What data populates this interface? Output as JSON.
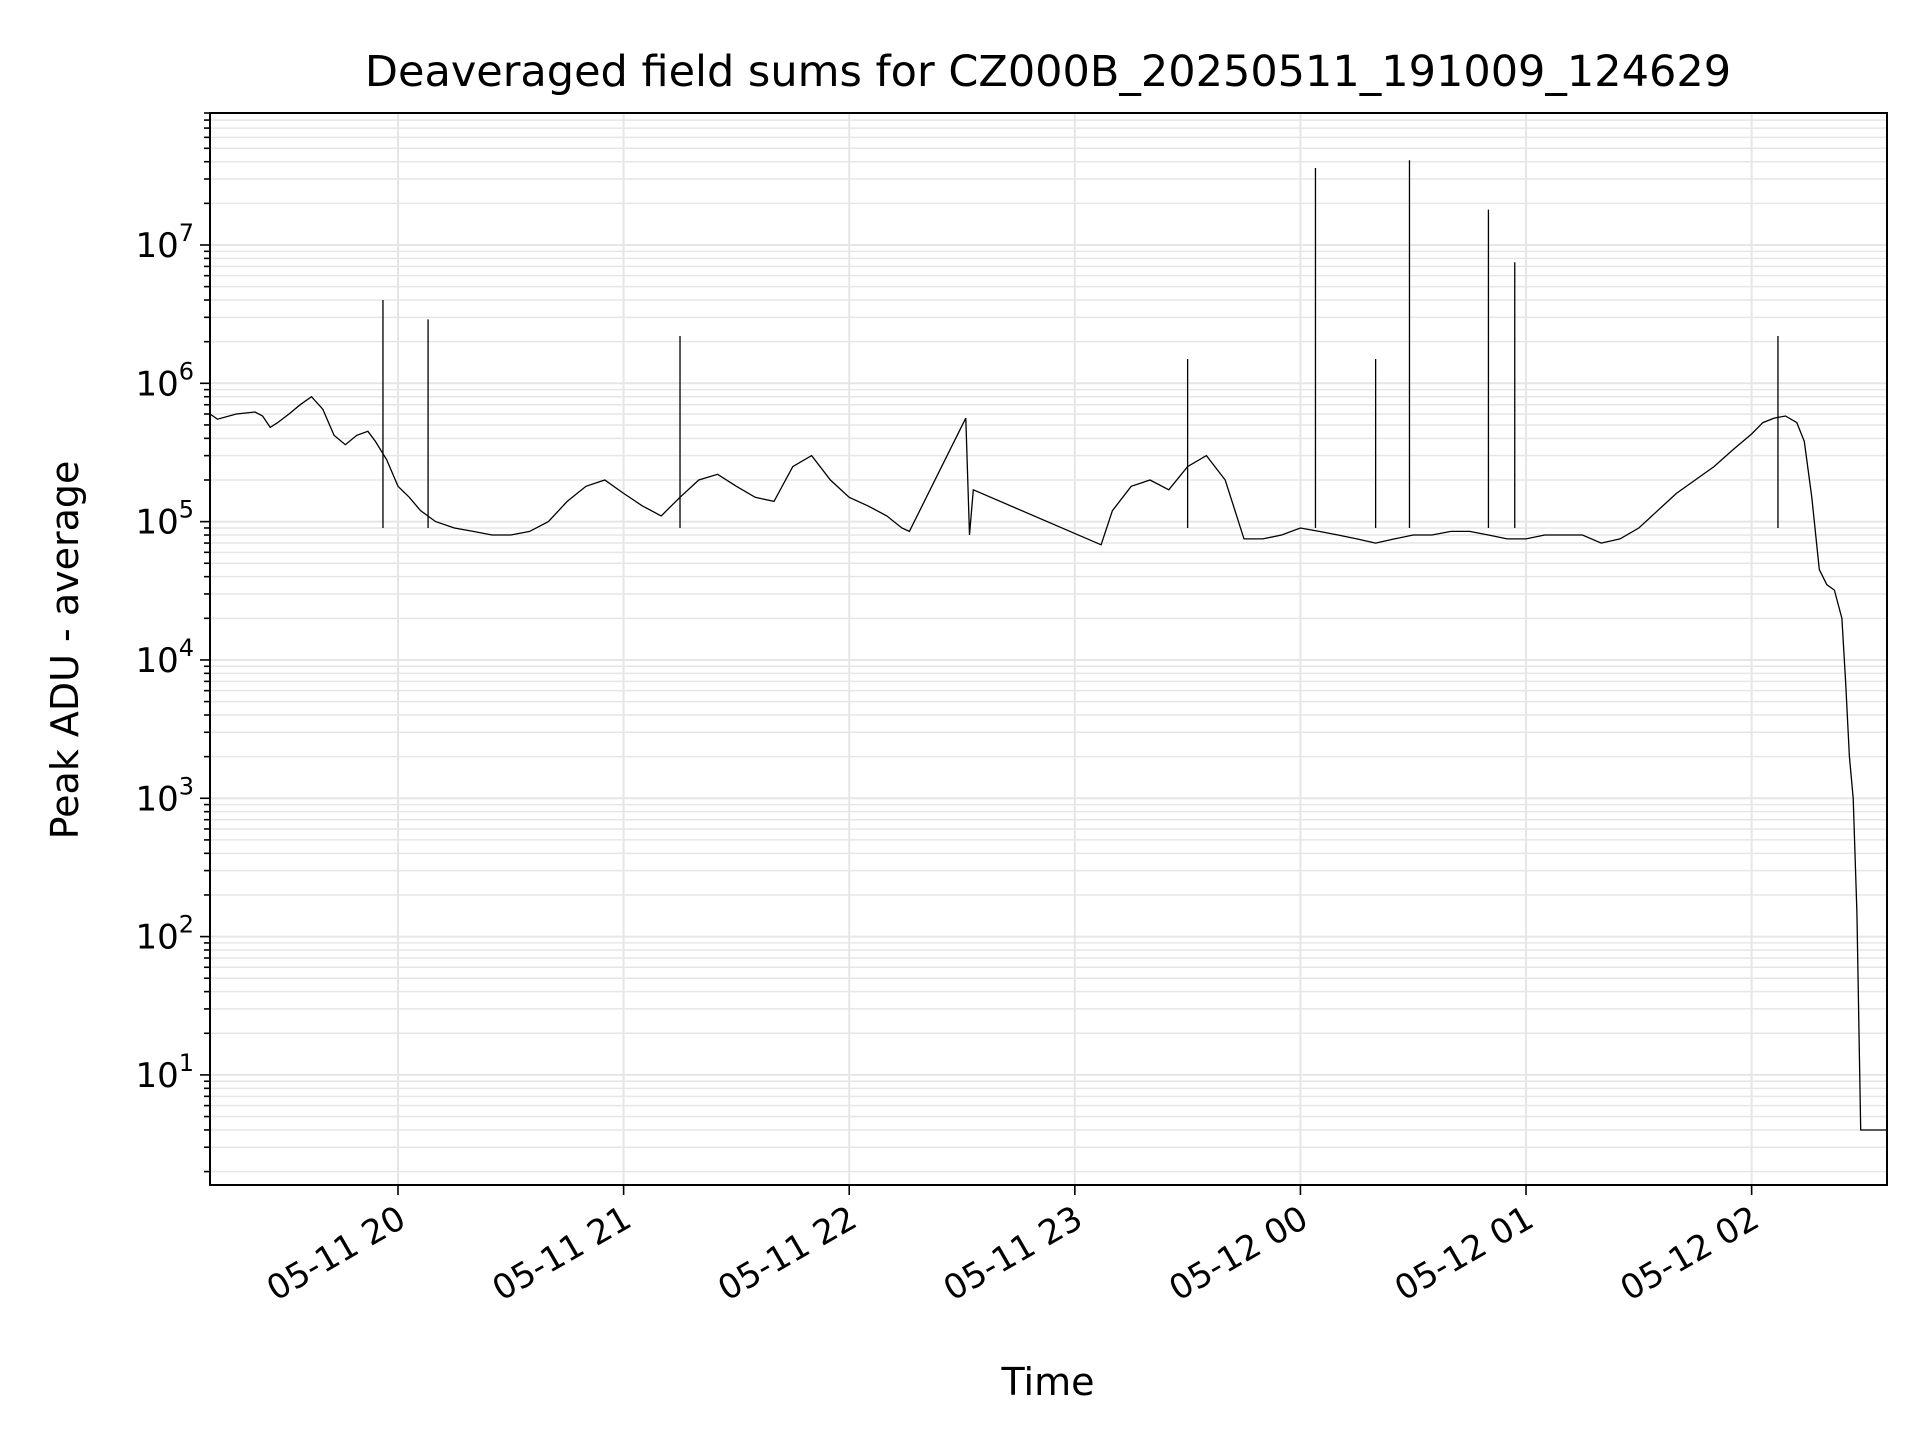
{
  "chart_data": {
    "type": "line",
    "title": "Deaveraged field sums for CZ000B_20250511_191009_124629",
    "xlabel": "Time",
    "ylabel": "Peak ADU - average",
    "yscale": "log",
    "xlim": [
      "2025-05-11 19:10",
      "2025-05-12 02:36"
    ],
    "ylim": [
      1.6,
      90000000
    ],
    "x_ticks": [
      {
        "value": "2025-05-11 20:00",
        "label": "05-11 20"
      },
      {
        "value": "2025-05-11 21:00",
        "label": "05-11 21"
      },
      {
        "value": "2025-05-11 22:00",
        "label": "05-11 22"
      },
      {
        "value": "2025-05-11 23:00",
        "label": "05-11 23"
      },
      {
        "value": "2025-05-12 00:00",
        "label": "05-12 00"
      },
      {
        "value": "2025-05-12 01:00",
        "label": "05-12 01"
      },
      {
        "value": "2025-05-12 02:00",
        "label": "05-12 02"
      }
    ],
    "y_ticks": [
      {
        "value": 10,
        "base": "10",
        "exp": "1"
      },
      {
        "value": 100,
        "base": "10",
        "exp": "2"
      },
      {
        "value": 1000,
        "base": "10",
        "exp": "3"
      },
      {
        "value": 10000,
        "base": "10",
        "exp": "4"
      },
      {
        "value": 100000,
        "base": "10",
        "exp": "5"
      },
      {
        "value": 1000000,
        "base": "10",
        "exp": "6"
      },
      {
        "value": 10000000,
        "base": "10",
        "exp": "7"
      }
    ],
    "grid": true,
    "series_color": "#000000",
    "series": [
      {
        "x": [
          "2025-05-11 19:10",
          "2025-05-11 19:12",
          "2025-05-11 19:17",
          "2025-05-11 19:22",
          "2025-05-11 19:24",
          "2025-05-11 19:26",
          "2025-05-11 19:28",
          "2025-05-11 19:31",
          "2025-05-11 19:34",
          "2025-05-11 19:37",
          "2025-05-11 19:40",
          "2025-05-11 19:43",
          "2025-05-11 19:46",
          "2025-05-11 19:49",
          "2025-05-11 19:52",
          "2025-05-11 19:54",
          "2025-05-11 19:57",
          "2025-05-11 20:00",
          "2025-05-11 20:03",
          "2025-05-11 20:06",
          "2025-05-11 20:10",
          "2025-05-11 20:15",
          "2025-05-11 20:20",
          "2025-05-11 20:25",
          "2025-05-11 20:30",
          "2025-05-11 20:35",
          "2025-05-11 20:40",
          "2025-05-11 20:45",
          "2025-05-11 20:50",
          "2025-05-11 20:55",
          "2025-05-11 21:00",
          "2025-05-11 21:05",
          "2025-05-11 21:10",
          "2025-05-11 21:15",
          "2025-05-11 21:20",
          "2025-05-11 21:25",
          "2025-05-11 21:30",
          "2025-05-11 21:35",
          "2025-05-11 21:40",
          "2025-05-11 21:45",
          "2025-05-11 21:50",
          "2025-05-11 21:55",
          "2025-05-11 22:00",
          "2025-05-11 22:05",
          "2025-05-11 22:10",
          "2025-05-11 22:14",
          "2025-05-11 22:16",
          "2025-05-11 22:31",
          "2025-05-11 22:32",
          "2025-05-11 22:33",
          "2025-05-11 23:07",
          "2025-05-11 23:10",
          "2025-05-11 23:15",
          "2025-05-11 23:20",
          "2025-05-11 23:25",
          "2025-05-11 23:30",
          "2025-05-11 23:35",
          "2025-05-11 23:40",
          "2025-05-11 23:45",
          "2025-05-11 23:50",
          "2025-05-11 23:55",
          "2025-05-12 00:00",
          "2025-05-12 00:05",
          "2025-05-12 00:10",
          "2025-05-12 00:15",
          "2025-05-12 00:20",
          "2025-05-12 00:25",
          "2025-05-12 00:30",
          "2025-05-12 00:35",
          "2025-05-12 00:40",
          "2025-05-12 00:45",
          "2025-05-12 00:50",
          "2025-05-12 00:55",
          "2025-05-12 01:00",
          "2025-05-12 01:05",
          "2025-05-12 01:10",
          "2025-05-12 01:15",
          "2025-05-12 01:20",
          "2025-05-12 01:25",
          "2025-05-12 01:30",
          "2025-05-12 01:35",
          "2025-05-12 01:40",
          "2025-05-12 01:45",
          "2025-05-12 01:50",
          "2025-05-12 01:55",
          "2025-05-12 02:00",
          "2025-05-12 02:03",
          "2025-05-12 02:06",
          "2025-05-12 02:09",
          "2025-05-12 02:12",
          "2025-05-12 02:14",
          "2025-05-12 02:16",
          "2025-05-12 02:18",
          "2025-05-12 02:20",
          "2025-05-12 02:22",
          "2025-05-12 02:24",
          "2025-05-12 02:25",
          "2025-05-12 02:26",
          "2025-05-12 02:27",
          "2025-05-12 02:28",
          "2025-05-12 02:29",
          "2025-05-12 02:30",
          "2025-05-12 02:32",
          "2025-05-12 02:36"
        ],
        "y": [
          600000,
          550000,
          600000,
          620000,
          580000,
          480000,
          520000,
          600000,
          700000,
          800000,
          650000,
          420000,
          360000,
          420000,
          450000,
          380000,
          280000,
          180000,
          150000,
          120000,
          100000,
          90000,
          85000,
          80000,
          80000,
          85000,
          100000,
          140000,
          180000,
          200000,
          160000,
          130000,
          110000,
          150000,
          200000,
          220000,
          180000,
          150000,
          140000,
          250000,
          300000,
          200000,
          150000,
          130000,
          110000,
          90000,
          85000,
          560000,
          80000,
          170000,
          68000,
          120000,
          180000,
          200000,
          170000,
          250000,
          300000,
          200000,
          75000,
          75000,
          80000,
          90000,
          85000,
          80000,
          75000,
          70000,
          75000,
          80000,
          80000,
          85000,
          85000,
          80000,
          75000,
          75000,
          80000,
          80000,
          80000,
          70000,
          75000,
          90000,
          120000,
          160000,
          200000,
          250000,
          330000,
          430000,
          520000,
          560000,
          580000,
          520000,
          380000,
          150000,
          45000,
          35000,
          32000,
          20000,
          7000,
          2000,
          1000,
          150,
          4,
          4,
          4,
          4
        ],
        "spikes": [
          {
            "x": "2025-05-11 19:56",
            "y": 4000000
          },
          {
            "x": "2025-05-11 20:08",
            "y": 2900000
          },
          {
            "x": "2025-05-11 21:15",
            "y": 2200000
          },
          {
            "x": "2025-05-11 23:30",
            "y": 1500000
          },
          {
            "x": "2025-05-12 00:04",
            "y": 36000000
          },
          {
            "x": "2025-05-12 00:20",
            "y": 1500000
          },
          {
            "x": "2025-05-12 00:29",
            "y": 41000000
          },
          {
            "x": "2025-05-12 00:50",
            "y": 18000000
          },
          {
            "x": "2025-05-12 00:57",
            "y": 7500000
          },
          {
            "x": "2025-05-12 02:07",
            "y": 2200000
          }
        ]
      }
    ]
  }
}
